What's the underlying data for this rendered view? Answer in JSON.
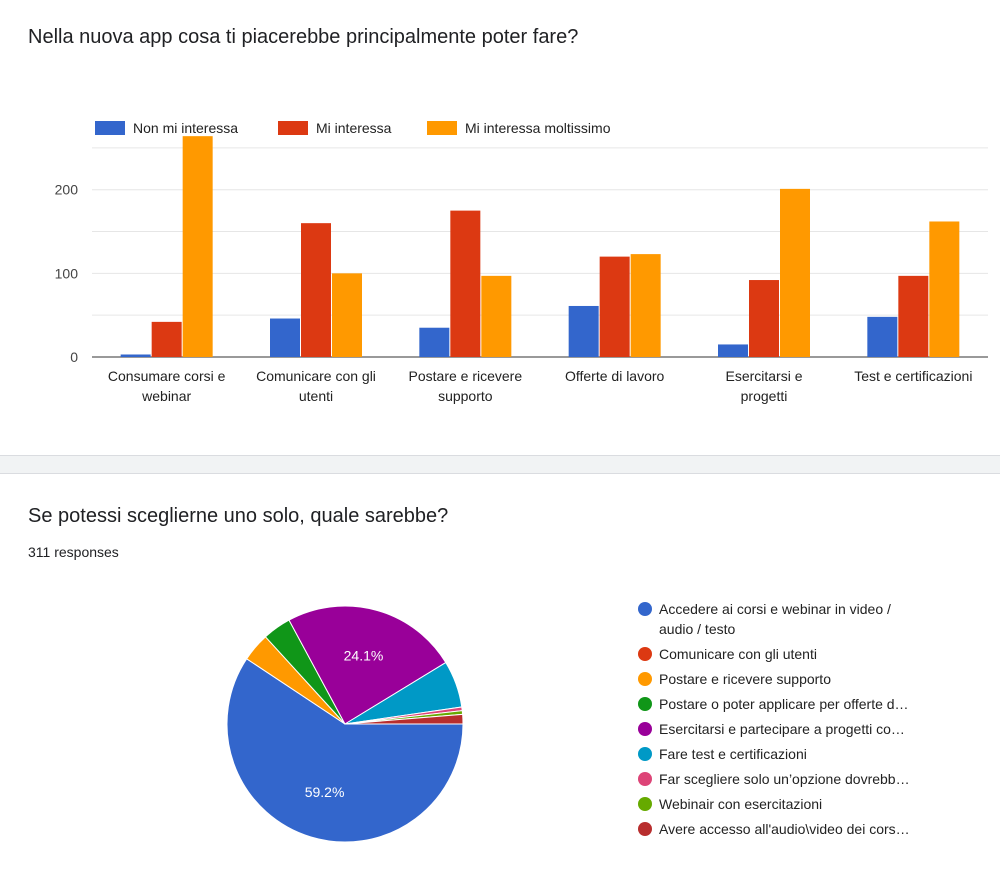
{
  "bar_card": {
    "question": "Nella nuova app cosa ti piacerebbe principalmente poter fare?"
  },
  "pie_card": {
    "question": "Se potessi sceglierne uno solo, quale sarebbe?",
    "responses": "311 responses"
  },
  "chart_data": [
    {
      "type": "bar",
      "categories": [
        [
          "Consumare corsi e",
          "webinar"
        ],
        [
          "Comunicare con gli",
          "utenti"
        ],
        [
          "Postare e ricevere",
          "supporto"
        ],
        [
          "Offerte di lavoro"
        ],
        [
          "Esercitarsi e",
          "progetti"
        ],
        [
          "Test e certificazioni"
        ]
      ],
      "series": [
        {
          "name": "Non mi interessa",
          "color": "#3366cc",
          "values": [
            3,
            46,
            35,
            61,
            15,
            48
          ]
        },
        {
          "name": "Mi interessa",
          "color": "#dc3912",
          "values": [
            42,
            160,
            175,
            120,
            92,
            97
          ]
        },
        {
          "name": "Mi interessa moltissimo",
          "color": "#ff9900",
          "values": [
            264,
            100,
            97,
            123,
            201,
            162
          ]
        }
      ],
      "yticks": [
        0,
        100,
        200
      ],
      "ylim": [
        0,
        270
      ],
      "legend": "top",
      "grid": true
    },
    {
      "type": "pie",
      "slices": [
        {
          "label": "Accedere ai corsi e webinar in video / audio / testo",
          "value": 59.2,
          "color": "#3366cc",
          "data_label": "59.2%"
        },
        {
          "label": "Comunicare con gli utenti",
          "value": 0,
          "color": "#dc3912",
          "data_label": ""
        },
        {
          "label": "Postare e ricevere supporto",
          "value": 3.9,
          "color": "#ff9900",
          "data_label": ""
        },
        {
          "label": "Postare o poter applicare per offerte d…",
          "value": 3.9,
          "color": "#109618",
          "data_label": ""
        },
        {
          "label": "Esercitarsi e partecipare a progetti co…",
          "value": 24.1,
          "color": "#990099",
          "data_label": "24.1%"
        },
        {
          "label": "Fare test e certificazioni",
          "value": 6.4,
          "color": "#0099c6",
          "data_label": ""
        },
        {
          "label": "Far scegliere solo un’opzione dovrebb…",
          "value": 0.5,
          "color": "#dd4477",
          "data_label": ""
        },
        {
          "label": "Webinair con esercitazioni",
          "value": 0.5,
          "color": "#66aa00",
          "data_label": ""
        },
        {
          "label": "Avere accesso all'audio\\video dei cors…",
          "value": 1.3,
          "color": "#b82e2e",
          "data_label": ""
        }
      ],
      "legend_lines": [
        [
          "Accedere ai corsi e webinar in video /",
          "audio / testo"
        ],
        [
          "Comunicare con gli utenti"
        ],
        [
          "Postare e ricevere supporto"
        ],
        [
          "Postare o poter applicare per offerte d…"
        ],
        [
          "Esercitarsi e partecipare a progetti co…"
        ],
        [
          "Fare test e certificazioni"
        ],
        [
          "Far scegliere solo un’opzione dovrebb…"
        ],
        [
          "Webinair con esercitazioni"
        ],
        [
          "Avere accesso all'audio\\video dei cors…"
        ]
      ],
      "legend": "right"
    }
  ]
}
